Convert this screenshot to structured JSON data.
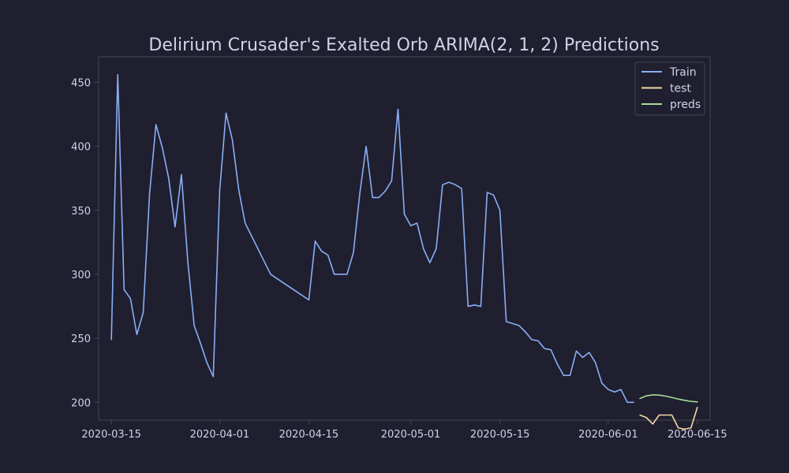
{
  "chart_data": {
    "type": "line",
    "title": "Delirium Crusader's Exalted Orb ARIMA(2, 1, 2) Predictions",
    "xlabel": "",
    "ylabel": "",
    "x_range": [
      "2020-03-13",
      "2020-06-17"
    ],
    "ylim": [
      186,
      470
    ],
    "x_ticks": [
      "2020-03-15",
      "2020-04-01",
      "2020-04-15",
      "2020-05-01",
      "2020-05-15",
      "2020-06-01",
      "2020-06-15"
    ],
    "y_ticks": [
      200,
      250,
      300,
      350,
      400,
      450
    ],
    "grid": false,
    "legend_position": "top-right",
    "series": [
      {
        "name": "Train",
        "color": "#8aaef5",
        "points": [
          [
            "2020-03-15",
            249
          ],
          [
            "2020-03-16",
            456
          ],
          [
            "2020-03-17",
            288
          ],
          [
            "2020-03-18",
            281
          ],
          [
            "2020-03-19",
            253
          ],
          [
            "2020-03-20",
            270
          ],
          [
            "2020-03-21",
            363
          ],
          [
            "2020-03-22",
            417
          ],
          [
            "2020-03-23",
            399
          ],
          [
            "2020-03-24",
            375
          ],
          [
            "2020-03-25",
            337
          ],
          [
            "2020-03-26",
            378
          ],
          [
            "2020-03-27",
            310
          ],
          [
            "2020-03-28",
            260
          ],
          [
            "2020-03-29",
            246
          ],
          [
            "2020-03-30",
            231
          ],
          [
            "2020-03-31",
            220
          ],
          [
            "2020-04-01",
            365
          ],
          [
            "2020-04-02",
            426
          ],
          [
            "2020-04-03",
            405
          ],
          [
            "2020-04-04",
            366
          ],
          [
            "2020-04-05",
            340
          ],
          [
            "2020-04-09",
            300
          ],
          [
            "2020-04-15",
            280
          ],
          [
            "2020-04-16",
            326
          ],
          [
            "2020-04-17",
            318
          ],
          [
            "2020-04-18",
            315
          ],
          [
            "2020-04-19",
            300
          ],
          [
            "2020-04-20",
            300
          ],
          [
            "2020-04-21",
            300
          ],
          [
            "2020-04-22",
            317
          ],
          [
            "2020-04-23",
            363
          ],
          [
            "2020-04-24",
            400
          ],
          [
            "2020-04-25",
            360
          ],
          [
            "2020-04-26",
            360
          ],
          [
            "2020-04-27",
            365
          ],
          [
            "2020-04-28",
            373
          ],
          [
            "2020-04-29",
            429
          ],
          [
            "2020-04-30",
            347
          ],
          [
            "2020-05-01",
            338
          ],
          [
            "2020-05-02",
            340
          ],
          [
            "2020-05-03",
            320
          ],
          [
            "2020-05-04",
            309
          ],
          [
            "2020-05-05",
            320
          ],
          [
            "2020-05-06",
            370
          ],
          [
            "2020-05-07",
            372
          ],
          [
            "2020-05-08",
            370
          ],
          [
            "2020-05-09",
            367
          ],
          [
            "2020-05-10",
            275
          ],
          [
            "2020-05-11",
            276
          ],
          [
            "2020-05-12",
            275
          ],
          [
            "2020-05-13",
            364
          ],
          [
            "2020-05-14",
            362
          ],
          [
            "2020-05-15",
            350
          ],
          [
            "2020-05-16",
            263
          ],
          [
            "2020-05-18",
            260
          ],
          [
            "2020-05-19",
            255
          ],
          [
            "2020-05-20",
            249
          ],
          [
            "2020-05-21",
            248
          ],
          [
            "2020-05-22",
            242
          ],
          [
            "2020-05-23",
            241
          ],
          [
            "2020-05-24",
            230
          ],
          [
            "2020-05-25",
            221
          ],
          [
            "2020-05-26",
            221
          ],
          [
            "2020-05-27",
            240
          ],
          [
            "2020-05-28",
            235
          ],
          [
            "2020-05-29",
            239
          ],
          [
            "2020-05-30",
            231
          ],
          [
            "2020-05-31",
            215
          ],
          [
            "2020-06-01",
            210
          ],
          [
            "2020-06-02",
            208
          ],
          [
            "2020-06-03",
            210
          ],
          [
            "2020-06-04",
            200
          ],
          [
            "2020-06-05",
            200
          ]
        ]
      },
      {
        "name": "test",
        "color": "#f5d7a3",
        "points": [
          [
            "2020-06-06",
            190
          ],
          [
            "2020-06-07",
            188
          ],
          [
            "2020-06-08",
            183
          ],
          [
            "2020-06-09",
            190
          ],
          [
            "2020-06-10",
            190
          ],
          [
            "2020-06-11",
            190
          ],
          [
            "2020-06-12",
            180
          ],
          [
            "2020-06-13",
            179
          ],
          [
            "2020-06-14",
            180
          ],
          [
            "2020-06-15",
            196
          ]
        ]
      },
      {
        "name": "preds",
        "color": "#a6dd9a",
        "points": [
          [
            "2020-06-06",
            203
          ],
          [
            "2020-06-07",
            205
          ],
          [
            "2020-06-08",
            205.8
          ],
          [
            "2020-06-09",
            205.6
          ],
          [
            "2020-06-10",
            204.8
          ],
          [
            "2020-06-11",
            203.7
          ],
          [
            "2020-06-12",
            202.5
          ],
          [
            "2020-06-13",
            201.5
          ],
          [
            "2020-06-14",
            200.7
          ],
          [
            "2020-06-15",
            200.3
          ]
        ]
      }
    ]
  },
  "colors": {
    "background": "#1f1f2f",
    "text": "#cfd3ea",
    "axis": "#454558",
    "legend_border": "#454558"
  }
}
